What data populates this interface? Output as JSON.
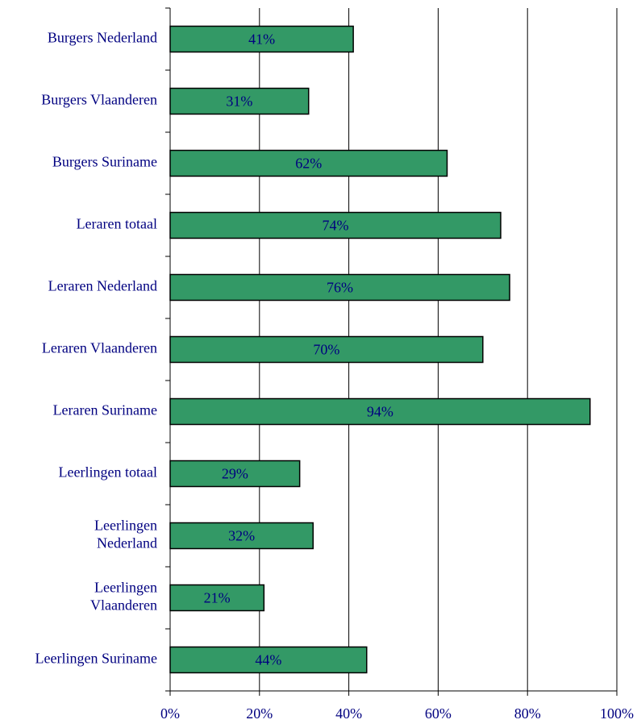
{
  "chart_data": {
    "type": "bar",
    "orientation": "horizontal",
    "categories": [
      "Burgers Nederland",
      "Burgers Vlaanderen",
      "Burgers Suriname",
      "Leraren totaal",
      "Leraren Nederland",
      "Leraren Vlaanderen",
      "Leraren Suriname",
      "Leerlingen totaal",
      "Leerlingen\nNederland",
      "Leerlingen\nVlaanderen",
      "Leerlingen Suriname"
    ],
    "values": [
      41,
      31,
      62,
      74,
      76,
      70,
      94,
      29,
      32,
      21,
      44
    ],
    "value_labels": [
      "41%",
      "31%",
      "62%",
      "74%",
      "76%",
      "70%",
      "94%",
      "29%",
      "32%",
      "21%",
      "44%"
    ],
    "color": "#339966",
    "xlim": [
      0,
      100
    ],
    "xticks": [
      {
        "value": 0,
        "label": "0%"
      },
      {
        "value": 20,
        "label": "20%"
      },
      {
        "value": 40,
        "label": "40%"
      },
      {
        "value": 60,
        "label": "60%"
      },
      {
        "value": 80,
        "label": "80%"
      },
      {
        "value": 100,
        "label": "100%"
      }
    ],
    "grid": true
  }
}
